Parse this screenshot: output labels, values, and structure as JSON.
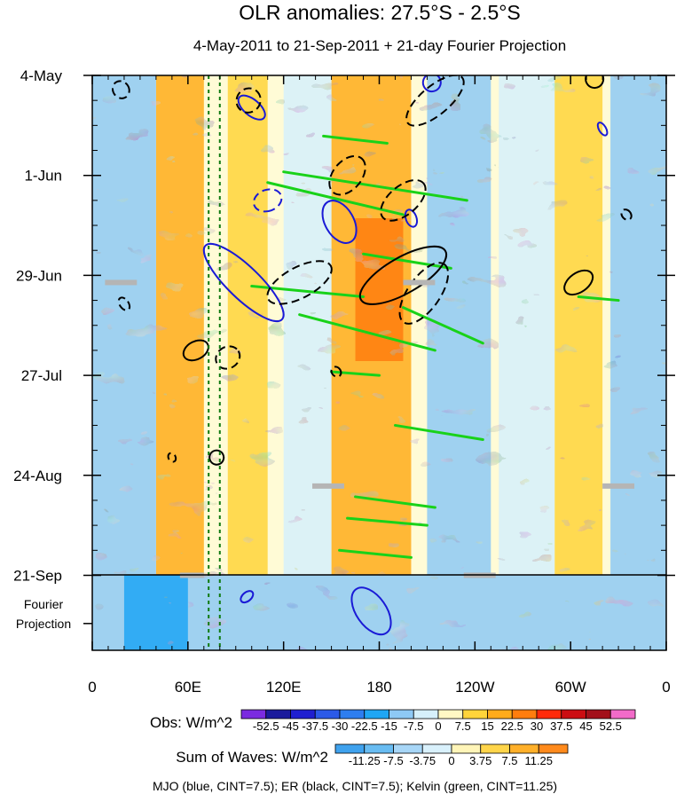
{
  "chart_data": {
    "type": "heatmap",
    "title": "OLR anomalies: 27.5°S - 2.5°S",
    "subtitle": "4-May-2011 to 21-Sep-2011 + 21-day Fourier Projection",
    "x_ticks": [
      "0",
      "60E",
      "120E",
      "180",
      "120W",
      "60W",
      "0"
    ],
    "x_tick_lon": [
      0,
      60,
      120,
      180,
      240,
      300,
      360
    ],
    "y_ticks": [
      "4-May",
      "1-Jun",
      "29-Jun",
      "27-Jul",
      "24-Aug",
      "21-Sep"
    ],
    "y_tick_day": [
      0,
      28,
      56,
      84,
      112,
      140
    ],
    "projection_label": [
      "Fourier",
      "Projection"
    ],
    "projection_days": 21,
    "xlim": [
      0,
      360
    ],
    "ylim_days": [
      0,
      161
    ],
    "obs_colorbar": {
      "label": "Obs: W/m^2",
      "levels": [
        "-52.5",
        "-45",
        "-37.5",
        "-30",
        "-22.5",
        "-15",
        "-7.5",
        "0",
        "7.5",
        "15",
        "22.5",
        "30",
        "37.5",
        "45",
        "52.5"
      ],
      "colors": [
        "#7b2be0",
        "#1a1a9c",
        "#1f1fd0",
        "#2c5ae8",
        "#2d7ef0",
        "#1fa6f4",
        "#8ec9f5",
        "#d6f0fb",
        "#fff8c4",
        "#ffd43a",
        "#ffab1a",
        "#ff7d0e",
        "#ff2a0a",
        "#cc0d12",
        "#a3101a",
        "#f26bc9"
      ]
    },
    "waves_colorbar": {
      "label": "Sum of Waves: W/m^2",
      "levels": [
        "-11.25",
        "-7.5",
        "-3.75",
        "0",
        "3.75",
        "7.5",
        "11.25"
      ],
      "colors": [
        "#3fa2ee",
        "#68bcf2",
        "#a7d6f7",
        "#d9f1fc",
        "#fff5b8",
        "#ffd54a",
        "#ffb02a",
        "#ff8a1c"
      ]
    },
    "contour_note": "MJO (blue, CINT=7.5); ER (black, CINT=7.5); Kelvin (green, CINT=11.25)",
    "series": [
      {
        "name": "MJO",
        "color": "#1a1ad6",
        "cint": 7.5
      },
      {
        "name": "ER",
        "color": "#000000",
        "cint": 7.5
      },
      {
        "name": "Kelvin",
        "color": "#19d219",
        "cint": 11.25
      }
    ],
    "reference_lon_lines": [
      73,
      80
    ],
    "features": {
      "kelvin": [
        {
          "lon0": 145,
          "day0": 17,
          "lon1": 185,
          "day1": 19
        },
        {
          "lon0": 120,
          "day0": 27,
          "lon1": 235,
          "day1": 35
        },
        {
          "lon0": 110,
          "day0": 30,
          "lon1": 195,
          "day1": 39
        },
        {
          "lon0": 170,
          "day0": 50,
          "lon1": 225,
          "day1": 54
        },
        {
          "lon0": 100,
          "day0": 59,
          "lon1": 170,
          "day1": 62
        },
        {
          "lon0": 130,
          "day0": 67,
          "lon1": 215,
          "day1": 77
        },
        {
          "lon0": 195,
          "day0": 65,
          "lon1": 245,
          "day1": 75
        },
        {
          "lon0": 150,
          "day0": 83,
          "lon1": 180,
          "day1": 84
        },
        {
          "lon0": 190,
          "day0": 98,
          "lon1": 245,
          "day1": 102
        },
        {
          "lon0": 165,
          "day0": 118,
          "lon1": 215,
          "day1": 121
        },
        {
          "lon0": 160,
          "day0": 124,
          "lon1": 210,
          "day1": 126
        },
        {
          "lon0": 155,
          "day0": 133,
          "lon1": 200,
          "day1": 135
        },
        {
          "lon0": 305,
          "day0": 62,
          "lon1": 330,
          "day1": 63
        }
      ],
      "mjo": [
        {
          "lon": 100,
          "day": 9,
          "rx": 9,
          "ry": 4.5,
          "rot": -50,
          "dash": false
        },
        {
          "lon": 110,
          "day": 35,
          "rx": 12,
          "ry": 4,
          "rot": 70,
          "dash": true
        },
        {
          "lon": 95,
          "day": 58,
          "rx": 60,
          "ry": 4.5,
          "rot": 44,
          "dash": false
        },
        {
          "lon": 155,
          "day": 41,
          "rx": 26,
          "ry": 4,
          "rot": 60,
          "dash": false
        },
        {
          "lon": 97,
          "day": 146,
          "rx": 5,
          "ry": 2,
          "rot": 50,
          "dash": false
        },
        {
          "lon": 175,
          "day": 150,
          "rx": 30,
          "ry": 4.2,
          "rot": 55,
          "dash": false
        },
        {
          "lon": 213,
          "day": 2,
          "rx": 10,
          "ry": 2.5,
          "rot": 20,
          "dash": false
        },
        {
          "lon": 200,
          "day": 40,
          "rx": 6,
          "ry": 2.5,
          "rot": -20,
          "dash": false
        },
        {
          "lon": 320,
          "day": 15,
          "rx": 4,
          "ry": 2,
          "rot": -30,
          "dash": false
        }
      ],
      "er": [
        {
          "lon": 18,
          "day": 4,
          "rx": 9,
          "ry": 2.5,
          "rot": -35,
          "dash": true
        },
        {
          "lon": 98,
          "day": 7,
          "rx": 14,
          "ry": 3.3,
          "rot": -50,
          "dash": true
        },
        {
          "lon": 215,
          "day": 7,
          "rx": 40,
          "ry": 4,
          "rot": -40,
          "dash": true
        },
        {
          "lon": 160,
          "day": 28,
          "rx": 25,
          "ry": 4,
          "rot": -50,
          "dash": true
        },
        {
          "lon": 195,
          "day": 35,
          "rx": 30,
          "ry": 4,
          "rot": -40,
          "dash": true
        },
        {
          "lon": 130,
          "day": 58,
          "rx": 40,
          "ry": 4.3,
          "rot": -28,
          "dash": true
        },
        {
          "lon": 195,
          "day": 56,
          "rx": 55,
          "ry": 5,
          "rot": -30,
          "dash": false
        },
        {
          "lon": 208,
          "day": 61,
          "rx": 40,
          "ry": 4.5,
          "rot": -55,
          "dash": true
        },
        {
          "lon": 65,
          "day": 77,
          "rx": 15,
          "ry": 2.5,
          "rot": -28,
          "dash": false
        },
        {
          "lon": 85,
          "day": 79,
          "rx": 14,
          "ry": 3,
          "rot": -32,
          "dash": true
        },
        {
          "lon": 20,
          "day": 64,
          "rx": 5,
          "ry": 2,
          "rot": -35,
          "dash": true
        },
        {
          "lon": 305,
          "day": 58,
          "rx": 18,
          "ry": 2.7,
          "rot": -35,
          "dash": false
        },
        {
          "lon": 315,
          "day": 1,
          "rx": 10,
          "ry": 2.5,
          "rot": -30,
          "dash": false
        },
        {
          "lon": 153,
          "day": 83,
          "rx": 5,
          "ry": 1.5,
          "rot": -40,
          "dash": true
        },
        {
          "lon": 78,
          "day": 107,
          "rx": 8,
          "ry": 2,
          "rot": -32,
          "dash": false
        },
        {
          "lon": 50,
          "day": 107,
          "rx": 4,
          "ry": 1.3,
          "rot": -30,
          "dash": true
        },
        {
          "lon": 335,
          "day": 39,
          "rx": 5,
          "ry": 1.6,
          "rot": -40,
          "dash": true
        }
      ],
      "missing": [
        {
          "lon0": 8,
          "lon1": 28,
          "day": 58
        },
        {
          "lon0": 138,
          "lon1": 158,
          "day": 115
        },
        {
          "lon0": 195,
          "lon1": 215,
          "day": 58
        },
        {
          "lon0": 233,
          "lon1": 253,
          "day": 140
        },
        {
          "lon0": 320,
          "lon1": 340,
          "day": 115
        },
        {
          "lon0": 55,
          "lon1": 70,
          "day": 140
        }
      ]
    }
  }
}
